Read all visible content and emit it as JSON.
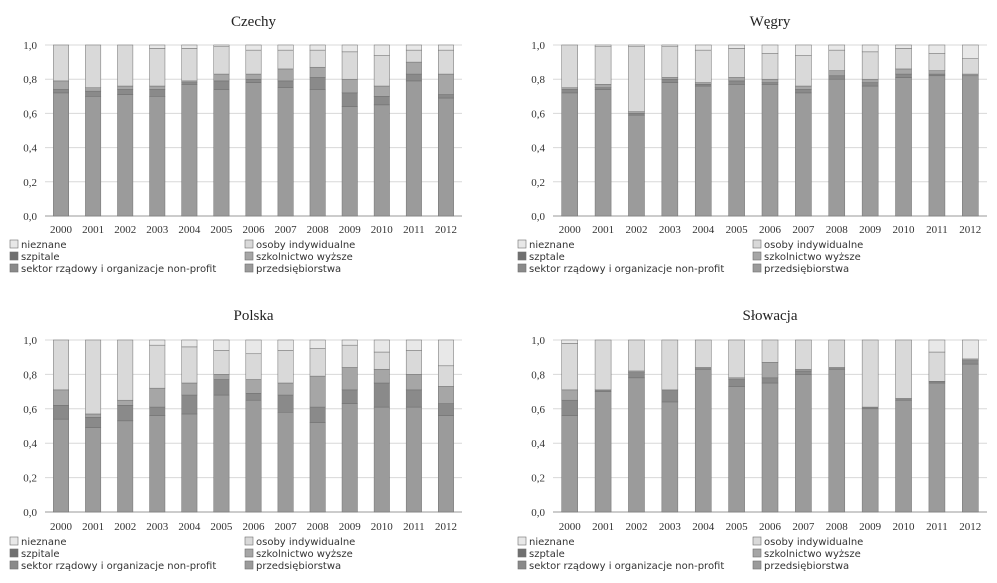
{
  "chart_data": [
    {
      "type": "bar",
      "title": "Czechy",
      "categories": [
        "2000",
        "2001",
        "2002",
        "2003",
        "2004",
        "2005",
        "2006",
        "2007",
        "2008",
        "2009",
        "2010",
        "2011",
        "2012"
      ],
      "yticks": [
        "0,0",
        "0,2",
        "0,4",
        "0,6",
        "0,8",
        "1,0"
      ],
      "ylim": [
        0,
        1
      ],
      "stacked": true,
      "series": [
        {
          "name": "przedsiębiorstwa",
          "values": [
            0.72,
            0.7,
            0.71,
            0.7,
            0.77,
            0.74,
            0.78,
            0.75,
            0.74,
            0.64,
            0.65,
            0.79,
            0.69
          ]
        },
        {
          "name": "sektor rządowy i organizacje non-profit",
          "values": [
            0.02,
            0.03,
            0.03,
            0.04,
            0.01,
            0.05,
            0.02,
            0.04,
            0.07,
            0.08,
            0.05,
            0.04,
            0.02
          ]
        },
        {
          "name": "szkolnictwo wyższe",
          "values": [
            0.05,
            0.02,
            0.02,
            0.02,
            0.01,
            0.04,
            0.03,
            0.07,
            0.06,
            0.08,
            0.06,
            0.07,
            0.12
          ]
        },
        {
          "name": "szpitale",
          "values": [
            0.0,
            0.0,
            0.0,
            0.0,
            0.0,
            0.0,
            0.0,
            0.0,
            0.0,
            0.0,
            0.0,
            0.0,
            0.0
          ]
        },
        {
          "name": "osoby indywidualne",
          "values": [
            0.21,
            0.25,
            0.24,
            0.22,
            0.19,
            0.16,
            0.14,
            0.11,
            0.1,
            0.16,
            0.18,
            0.07,
            0.14
          ]
        },
        {
          "name": "nieznane",
          "values": [
            0.0,
            0.0,
            0.0,
            0.02,
            0.02,
            0.01,
            0.03,
            0.03,
            0.03,
            0.04,
            0.06,
            0.03,
            0.03
          ]
        }
      ],
      "legend": [
        "nieznane",
        "osoby indywidualne",
        "szpitale",
        "szkolnictwo wyższe",
        "sektor rządowy i organizacje non-profit",
        "przedsiębiorstwa"
      ]
    },
    {
      "type": "bar",
      "title": "Węgry",
      "categories": [
        "2000",
        "2001",
        "2002",
        "2003",
        "2004",
        "2005",
        "2006",
        "2007",
        "2008",
        "2009",
        "2010",
        "2011",
        "2012"
      ],
      "yticks": [
        "0,0",
        "0,2",
        "0,4",
        "0,6",
        "0,8",
        "1,0"
      ],
      "ylim": [
        0,
        1
      ],
      "stacked": true,
      "series": [
        {
          "name": "przedsiębiorstwa",
          "values": [
            0.72,
            0.74,
            0.59,
            0.78,
            0.76,
            0.77,
            0.77,
            0.72,
            0.8,
            0.76,
            0.81,
            0.82,
            0.82
          ]
        },
        {
          "name": "sektor rządowy i organizacje non-profit",
          "values": [
            0.02,
            0.01,
            0.01,
            0.02,
            0.01,
            0.02,
            0.01,
            0.02,
            0.02,
            0.02,
            0.02,
            0.01,
            0.0
          ]
        },
        {
          "name": "szkolnictwo wyższe",
          "values": [
            0.01,
            0.02,
            0.01,
            0.01,
            0.01,
            0.02,
            0.02,
            0.02,
            0.03,
            0.02,
            0.03,
            0.02,
            0.01
          ]
        },
        {
          "name": "szpitale",
          "values": [
            0.0,
            0.0,
            0.0,
            0.0,
            0.0,
            0.0,
            0.0,
            0.0,
            0.0,
            0.0,
            0.0,
            0.0,
            0.0
          ]
        },
        {
          "name": "osoby indywidualne",
          "values": [
            0.25,
            0.22,
            0.38,
            0.18,
            0.19,
            0.17,
            0.15,
            0.18,
            0.12,
            0.16,
            0.12,
            0.1,
            0.09
          ]
        },
        {
          "name": "nieznane",
          "values": [
            0.0,
            0.01,
            0.01,
            0.01,
            0.03,
            0.02,
            0.05,
            0.06,
            0.03,
            0.04,
            0.02,
            0.05,
            0.08
          ]
        }
      ],
      "legend": [
        "nieznane",
        "osoby indywidualne",
        "szptale",
        "szkolnictwo wyższe",
        "sektor rządowy i organizacje non-profit",
        "przedsiębiorstwa"
      ]
    },
    {
      "type": "bar",
      "title": "Polska",
      "categories": [
        "2000",
        "2001",
        "2002",
        "2003",
        "2004",
        "2005",
        "2006",
        "2007",
        "2008",
        "2009",
        "2010",
        "2011",
        "2012"
      ],
      "yticks": [
        "0,0",
        "0,2",
        "0,4",
        "0,6",
        "0,8",
        "1,0"
      ],
      "ylim": [
        0,
        1
      ],
      "stacked": true,
      "series": [
        {
          "name": "przedsiębiorstwa",
          "values": [
            0.54,
            0.49,
            0.53,
            0.56,
            0.57,
            0.68,
            0.65,
            0.58,
            0.52,
            0.63,
            0.61,
            0.61,
            0.56
          ]
        },
        {
          "name": "sektor rządowy i organizacje non-profit",
          "values": [
            0.08,
            0.06,
            0.09,
            0.05,
            0.11,
            0.09,
            0.04,
            0.1,
            0.09,
            0.08,
            0.14,
            0.1,
            0.07
          ]
        },
        {
          "name": "szkolnictwo wyższe",
          "values": [
            0.09,
            0.02,
            0.03,
            0.11,
            0.07,
            0.03,
            0.08,
            0.07,
            0.18,
            0.13,
            0.08,
            0.09,
            0.1
          ]
        },
        {
          "name": "szpitale",
          "values": [
            0.0,
            0.0,
            0.0,
            0.0,
            0.0,
            0.0,
            0.0,
            0.0,
            0.0,
            0.0,
            0.0,
            0.0,
            0.0
          ]
        },
        {
          "name": "osoby indywidualne",
          "values": [
            0.29,
            0.43,
            0.35,
            0.25,
            0.21,
            0.14,
            0.15,
            0.19,
            0.16,
            0.13,
            0.1,
            0.14,
            0.12
          ]
        },
        {
          "name": "nieznane",
          "values": [
            0.0,
            0.0,
            0.0,
            0.03,
            0.04,
            0.06,
            0.08,
            0.06,
            0.05,
            0.03,
            0.07,
            0.06,
            0.15
          ]
        }
      ],
      "legend": [
        "nieznane",
        "osoby indywidualne",
        "szpitale",
        "szkolnictwo wyższe",
        "sektor rządowy i organizacje non-profit",
        "przedsiębiorstwa"
      ]
    },
    {
      "type": "bar",
      "title": "Słowacja",
      "categories": [
        "2000",
        "2001",
        "2002",
        "2003",
        "2004",
        "2005",
        "2006",
        "2007",
        "2008",
        "2009",
        "2010",
        "2011",
        "2012"
      ],
      "yticks": [
        "0,0",
        "0,2",
        "0,4",
        "0,6",
        "0,8",
        "1,0"
      ],
      "ylim": [
        0,
        1
      ],
      "stacked": true,
      "series": [
        {
          "name": "przedsiębiorstwa",
          "values": [
            0.56,
            0.7,
            0.78,
            0.64,
            0.83,
            0.73,
            0.75,
            0.8,
            0.83,
            0.6,
            0.65,
            0.75,
            0.86
          ]
        },
        {
          "name": "sektor rządowy i organizacje non-profit",
          "values": [
            0.09,
            0.01,
            0.03,
            0.07,
            0.01,
            0.04,
            0.03,
            0.02,
            0.01,
            0.01,
            0.01,
            0.01,
            0.02
          ]
        },
        {
          "name": "szkolnictwo wyższe",
          "values": [
            0.06,
            0.0,
            0.01,
            0.0,
            0.0,
            0.01,
            0.09,
            0.01,
            0.0,
            0.0,
            0.0,
            0.0,
            0.01
          ]
        },
        {
          "name": "szpitale",
          "values": [
            0.0,
            0.0,
            0.0,
            0.0,
            0.0,
            0.0,
            0.0,
            0.0,
            0.0,
            0.0,
            0.0,
            0.0,
            0.0
          ]
        },
        {
          "name": "osoby indywidualne",
          "values": [
            0.27,
            0.29,
            0.18,
            0.29,
            0.16,
            0.22,
            0.13,
            0.17,
            0.16,
            0.39,
            0.34,
            0.17,
            0.0
          ]
        },
        {
          "name": "nieznane",
          "values": [
            0.02,
            0.0,
            0.0,
            0.0,
            0.0,
            0.0,
            0.0,
            0.0,
            0.0,
            0.0,
            0.0,
            0.07,
            0.11
          ]
        }
      ],
      "legend": [
        "nieznane",
        "osoby indywidualne",
        "szptale",
        "szkolnictwo wyższe",
        "sektor rządowy i organizacje non-profit",
        "przedsiębiorstwa"
      ]
    }
  ],
  "colors": {
    "przedsiębiorstwa": "#9b9b9b",
    "sektor rządowy i organizacje non-profit": "#8a8a8a",
    "szkolnictwo wyższe": "#a6a6a6",
    "szpitale": "#707070",
    "osoby indywidualne": "#d9d9d9",
    "nieznane": "#e8e8e8",
    "grid": "#d8d8d8",
    "axis": "#999999"
  }
}
